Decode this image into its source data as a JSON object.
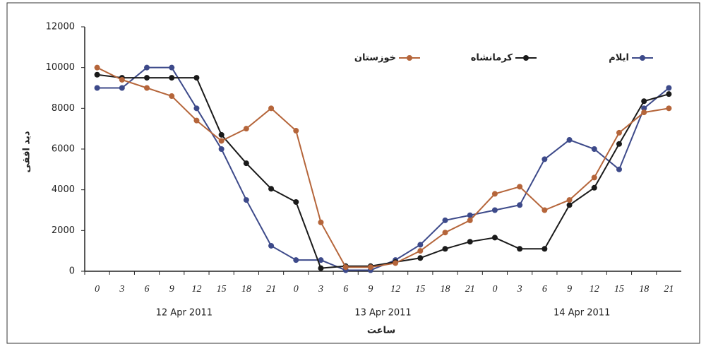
{
  "chart_data": {
    "type": "line",
    "y_label": "دید افقی",
    "x_label": "ساعت",
    "categories": [
      "0",
      "3",
      "6",
      "9",
      "12",
      "15",
      "18",
      "21",
      "0",
      "3",
      "6",
      "9",
      "12",
      "15",
      "18",
      "21",
      "0",
      "3",
      "6",
      "9",
      "12",
      "15",
      "18",
      "21"
    ],
    "groups": [
      "12 Apr 2011",
      "13 Apr 2011",
      "14 Apr 2011"
    ],
    "ylim": [
      0,
      12000
    ],
    "yticks": [
      0,
      2000,
      4000,
      6000,
      8000,
      10000,
      12000
    ],
    "grid": false,
    "series": [
      {
        "name": "ایلام",
        "color": "#3d4a8a",
        "values": [
          9000,
          9000,
          10000,
          10000,
          8000,
          6000,
          3500,
          1250,
          550,
          550,
          50,
          50,
          550,
          1300,
          2500,
          2750,
          3000,
          3250,
          5500,
          6450,
          6000,
          5000,
          8000,
          9000
        ]
      },
      {
        "name": "کرمانشاه",
        "color": "#1a1a1a",
        "values": [
          9650,
          9500,
          9500,
          9500,
          9500,
          6700,
          5300,
          4050,
          3400,
          150,
          250,
          250,
          450,
          650,
          1100,
          1450,
          1650,
          1100,
          1100,
          3250,
          4100,
          6250,
          8350,
          8700
        ]
      },
      {
        "name": "خوزستان",
        "color": "#b5653a",
        "values": [
          10000,
          9400,
          9000,
          8600,
          7400,
          6400,
          7000,
          8000,
          6900,
          2400,
          200,
          200,
          400,
          1000,
          1900,
          2500,
          3800,
          4150,
          3000,
          3500,
          4600,
          6800,
          7800,
          8000
        ]
      }
    ]
  }
}
